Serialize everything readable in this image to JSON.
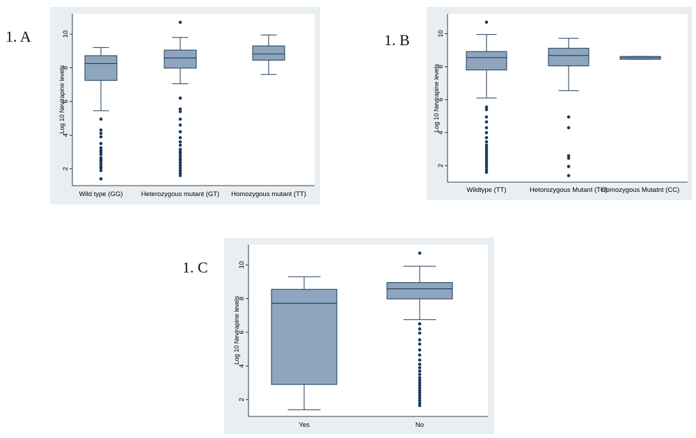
{
  "panels": [
    {
      "id": "A",
      "label": "1. A",
      "ylabel": "Log 10 Nevirapine levels",
      "yticks": [
        2,
        4,
        6,
        8,
        10
      ],
      "ylim": [
        1.0,
        11.2
      ],
      "colors": {
        "box": "#8ea5bd",
        "line": "#1a3a58",
        "dot": "#1a3a5c",
        "background": "#e8eef2"
      },
      "categories": [
        "Wild type (GG)",
        "Heterozygous mutant (GT)",
        "Homozygous mutant (TT)"
      ],
      "boxes": [
        {
          "whisker_low": 5.45,
          "q1": 7.25,
          "median": 8.25,
          "q3": 8.72,
          "whisker_high": 9.2,
          "outliers": [
            1.4,
            1.9,
            2.05,
            2.15,
            2.3,
            2.45,
            2.55,
            2.65,
            2.85,
            3.0,
            3.1,
            3.25,
            3.5,
            3.9,
            4.1,
            4.3,
            4.95
          ]
        },
        {
          "whisker_low": 7.05,
          "q1": 7.98,
          "median": 8.58,
          "q3": 9.05,
          "whisker_high": 9.8,
          "outliers": [
            1.6,
            1.75,
            1.9,
            2.05,
            2.2,
            2.35,
            2.5,
            2.6,
            2.75,
            2.9,
            3.0,
            3.15,
            3.4,
            3.6,
            3.85,
            4.2,
            4.6,
            4.95,
            5.4,
            5.55,
            6.2,
            10.7
          ]
        },
        {
          "whisker_low": 7.6,
          "q1": 8.45,
          "median": 8.82,
          "q3": 9.3,
          "whisker_high": 9.95,
          "outliers": []
        }
      ]
    },
    {
      "id": "B",
      "label": "1. B",
      "ylabel": "Log 10 Nevirapine levels",
      "yticks": [
        2,
        4,
        6,
        8,
        10
      ],
      "ylim": [
        1.0,
        11.2
      ],
      "colors": {
        "box": "#8ea5bd",
        "line": "#1a3a58",
        "dot": "#1a3a5c",
        "background": "#e8eef2"
      },
      "categories": [
        "Wildtype (TT)",
        "Hetorozygous Mutant (TC)",
        "Homozygous Mutatnt (CC)"
      ],
      "boxes": [
        {
          "whisker_low": 6.1,
          "q1": 7.8,
          "median": 8.55,
          "q3": 8.92,
          "whisker_high": 9.95,
          "outliers": [
            1.6,
            1.75,
            1.9,
            2.05,
            2.2,
            2.35,
            2.5,
            2.65,
            2.8,
            2.95,
            3.1,
            3.25,
            3.45,
            3.7,
            4.0,
            4.3,
            4.65,
            4.95,
            5.4,
            5.55,
            10.7
          ]
        },
        {
          "whisker_low": 6.55,
          "q1": 8.05,
          "median": 8.68,
          "q3": 9.12,
          "whisker_high": 9.72,
          "outliers": [
            1.4,
            1.95,
            2.45,
            2.6,
            4.3,
            4.95
          ]
        },
        {
          "whisker_low": 8.45,
          "q1": 8.45,
          "median": 8.55,
          "q3": 8.62,
          "whisker_high": 8.62,
          "outliers": []
        }
      ]
    },
    {
      "id": "C",
      "label": "1. C",
      "ylabel": "Log 10 Nevirapine levels",
      "yticks": [
        2,
        4,
        6,
        8,
        10
      ],
      "ylim": [
        1.0,
        11.2
      ],
      "colors": {
        "box": "#8ea5bd",
        "line": "#1a3a58",
        "dot": "#1a3a5c",
        "background": "#e8eef2"
      },
      "categories": [
        "Yes",
        "No"
      ],
      "boxes": [
        {
          "whisker_low": 1.4,
          "q1": 2.9,
          "median": 7.72,
          "q3": 8.55,
          "whisker_high": 9.3,
          "outliers": []
        },
        {
          "whisker_low": 6.75,
          "q1": 7.98,
          "median": 8.58,
          "q3": 8.95,
          "whisker_high": 9.92,
          "outliers": [
            1.65,
            1.8,
            1.95,
            2.1,
            2.25,
            2.4,
            2.55,
            2.7,
            2.85,
            3.0,
            3.15,
            3.3,
            3.5,
            3.7,
            3.9,
            4.1,
            4.35,
            4.65,
            4.95,
            5.3,
            5.55,
            5.95,
            6.2,
            6.5,
            10.7
          ]
        }
      ]
    }
  ],
  "chart_data": [
    {
      "type": "box",
      "categories": [
        "Wild type (GG)",
        "Heterozygous mutant (GT)",
        "Homozygous mutant (TT)"
      ],
      "ylabel": "Log 10 Nevirapine levels",
      "xlabel": "",
      "ylim": [
        1.0,
        11.2
      ],
      "grid": false
    },
    {
      "type": "box",
      "categories": [
        "Wildtype (TT)",
        "Hetorozygous Mutant (TC)",
        "Homozygous Mutatnt (CC)"
      ],
      "ylabel": "Log 10 Nevirapine levels",
      "xlabel": "",
      "ylim": [
        1.0,
        11.2
      ],
      "grid": false
    },
    {
      "type": "box",
      "categories": [
        "Yes",
        "No"
      ],
      "ylabel": "Log 10 Nevirapine levels",
      "xlabel": "",
      "ylim": [
        1.0,
        11.2
      ],
      "grid": false
    }
  ]
}
